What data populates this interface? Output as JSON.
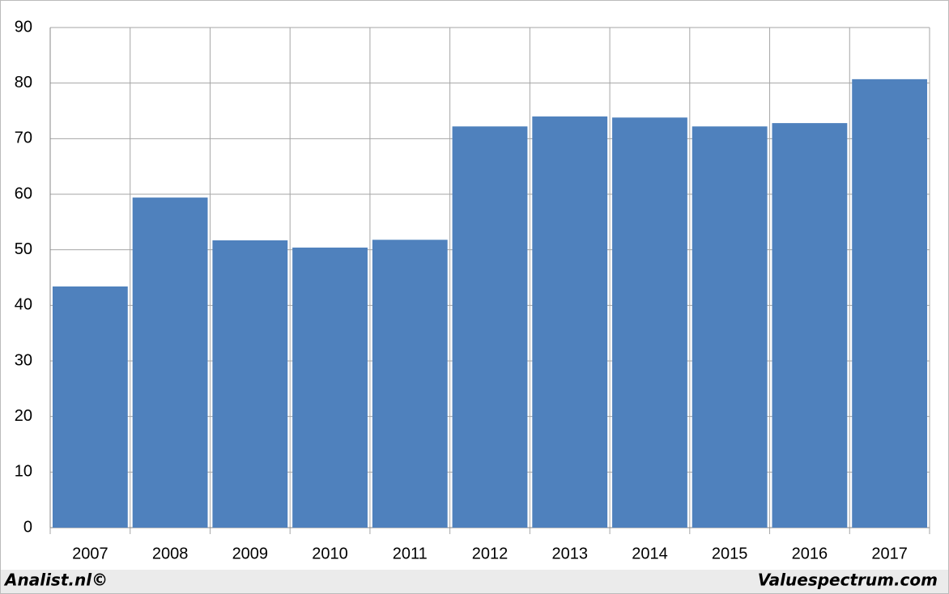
{
  "chart_data": {
    "type": "bar",
    "categories": [
      "2007",
      "2008",
      "2009",
      "2010",
      "2011",
      "2012",
      "2013",
      "2014",
      "2015",
      "2016",
      "2017"
    ],
    "values": [
      43.4,
      59.4,
      51.7,
      50.4,
      51.8,
      72.2,
      74.0,
      73.8,
      72.2,
      72.8,
      80.7
    ],
    "color": "#4f81bd",
    "ylim": [
      0,
      90
    ],
    "yticks": [
      0,
      10,
      20,
      30,
      40,
      50,
      60,
      70,
      80,
      90
    ],
    "grid": true,
    "footer_left": "Analist.nl©",
    "footer_right": "Valuespectrum.com"
  }
}
